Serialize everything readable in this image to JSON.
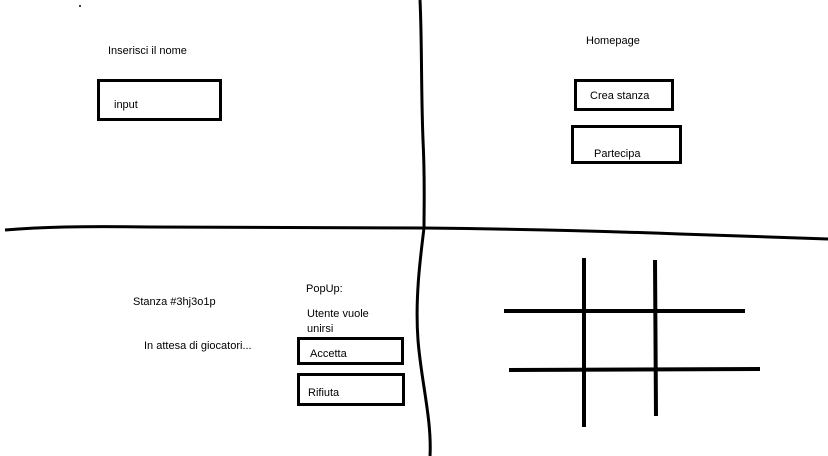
{
  "name_screen": {
    "prompt": "Inserisci il nome",
    "input_label": "input"
  },
  "homepage": {
    "title": "Homepage",
    "create_room_label": "Crea stanza",
    "join_label": "Partecipa"
  },
  "room": {
    "room_id": "Stanza #3hj3o1p",
    "waiting_text": "In attesa di giocatori..."
  },
  "popup": {
    "title": "PopUp:",
    "message_line1": "Utente vuole",
    "message_line2": "unirsi",
    "accept_label": "Accetta",
    "reject_label": "Rifiuta"
  },
  "game_board": {
    "type": "tic-tac-toe grid"
  }
}
